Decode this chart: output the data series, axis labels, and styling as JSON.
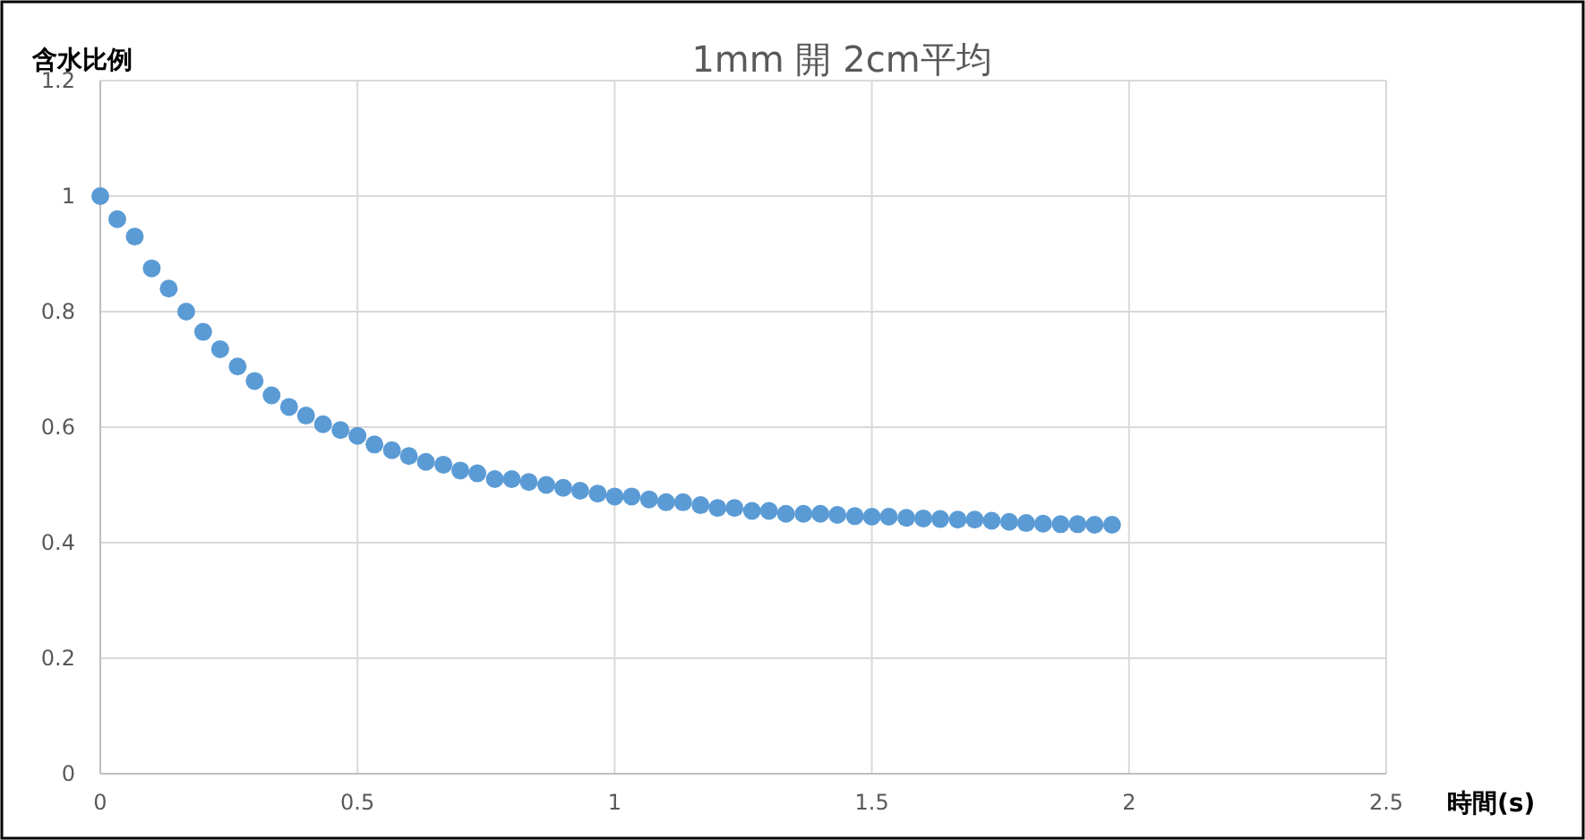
{
  "chart_data": {
    "type": "scatter",
    "title": "1mm 開 2cm平均",
    "xlabel": "時間(s)",
    "ylabel": "含水比例",
    "xlim": [
      0,
      2.5
    ],
    "xticks": [
      0,
      0.5,
      1,
      1.5,
      2,
      2.5
    ],
    "ylim": [
      0,
      1.2
    ],
    "yticks": [
      0,
      0.2,
      0.4,
      0.6,
      0.8,
      1,
      1.2
    ],
    "grid": true,
    "marker": "circle",
    "series": [
      {
        "color": "#5b9bd5",
        "x": [
          0,
          0.033,
          0.067,
          0.1,
          0.133,
          0.167,
          0.2,
          0.233,
          0.267,
          0.3,
          0.333,
          0.367,
          0.4,
          0.433,
          0.467,
          0.5,
          0.533,
          0.567,
          0.6,
          0.633,
          0.667,
          0.7,
          0.733,
          0.767,
          0.8,
          0.833,
          0.867,
          0.9,
          0.933,
          0.967,
          1.0,
          1.033,
          1.067,
          1.1,
          1.133,
          1.167,
          1.2,
          1.233,
          1.267,
          1.3,
          1.333,
          1.367,
          1.4,
          1.433,
          1.467,
          1.5,
          1.533,
          1.567,
          1.6,
          1.633,
          1.667,
          1.7,
          1.733,
          1.767,
          1.8,
          1.833,
          1.867,
          1.9,
          1.933,
          1.967
        ],
        "values": [
          1.0,
          0.96,
          0.93,
          0.875,
          0.84,
          0.8,
          0.765,
          0.735,
          0.705,
          0.68,
          0.655,
          0.635,
          0.62,
          0.605,
          0.595,
          0.585,
          0.57,
          0.56,
          0.55,
          0.54,
          0.535,
          0.525,
          0.52,
          0.51,
          0.51,
          0.505,
          0.5,
          0.495,
          0.49,
          0.485,
          0.48,
          0.48,
          0.475,
          0.47,
          0.47,
          0.465,
          0.46,
          0.46,
          0.455,
          0.455,
          0.45,
          0.45,
          0.45,
          0.448,
          0.446,
          0.445,
          0.445,
          0.443,
          0.442,
          0.441,
          0.44,
          0.44,
          0.438,
          0.436,
          0.434,
          0.433,
          0.432,
          0.432,
          0.431,
          0.431
        ]
      }
    ]
  }
}
